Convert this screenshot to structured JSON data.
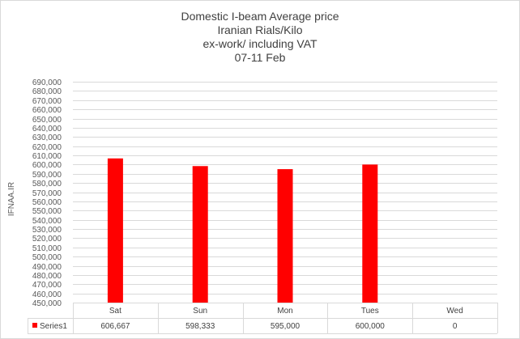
{
  "chart_data": {
    "type": "bar",
    "title_lines": [
      "Domestic I-beam Average price",
      "Iranian Rials/Kilo",
      "ex-work/ including VAT",
      "07-11 Feb"
    ],
    "ylabel": "IFNAA.IR",
    "xlabel": "",
    "categories": [
      "Sat",
      "Sun",
      "Mon",
      "Tues",
      "Wed"
    ],
    "series": [
      {
        "name": "Series1",
        "values": [
          606667,
          598333,
          595000,
          600000,
          0
        ],
        "value_labels": [
          "606,667",
          "598,333",
          "595,000",
          "600,000",
          "0"
        ],
        "color": "#ff0000"
      }
    ],
    "ylim": [
      450000,
      690000
    ],
    "ytick_step": 10000,
    "grid": true,
    "legend": "data-table-bottom"
  }
}
